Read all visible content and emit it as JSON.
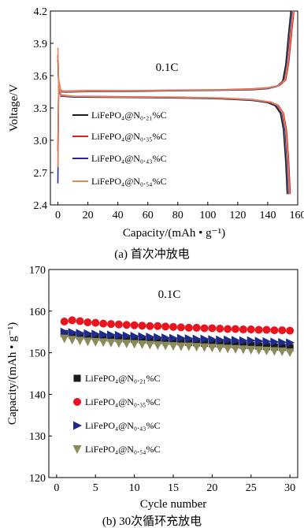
{
  "chart_data": [
    {
      "type": "line",
      "caption": "(a) 首次冲放电",
      "annotation": "0.1C",
      "xlabel": "Capacity/(mAh • g⁻¹)",
      "ylabel": "Voltage/V",
      "xlim": [
        -5,
        160
      ],
      "ylim": [
        2.4,
        4.2
      ],
      "xticks": [
        0,
        20,
        40,
        60,
        80,
        100,
        120,
        140,
        160
      ],
      "yticks": [
        2.4,
        2.7,
        3.0,
        3.3,
        3.6,
        3.9,
        4.2
      ],
      "legend_position": "left",
      "series": [
        {
          "name": "LiFePO₄@N₀.₂₁%C",
          "color": "#1a1a1a",
          "charge": [
            [
              0,
              2.9
            ],
            [
              0.5,
              3.55
            ],
            [
              2,
              3.45
            ],
            [
              5,
              3.448
            ],
            [
              20,
              3.452
            ],
            [
              50,
              3.455
            ],
            [
              80,
              3.46
            ],
            [
              110,
              3.465
            ],
            [
              130,
              3.47
            ],
            [
              140,
              3.48
            ],
            [
              146,
              3.5
            ],
            [
              150,
              3.55
            ],
            [
              152,
              3.7
            ],
            [
              154,
              4.0
            ],
            [
              155.5,
              4.2
            ]
          ],
          "discharge": [
            [
              0,
              3.75
            ],
            [
              0.5,
              3.5
            ],
            [
              2,
              3.41
            ],
            [
              10,
              3.402
            ],
            [
              40,
              3.398
            ],
            [
              80,
              3.393
            ],
            [
              110,
              3.385
            ],
            [
              130,
              3.37
            ],
            [
              140,
              3.35
            ],
            [
              145,
              3.32
            ],
            [
              148.5,
              3.25
            ],
            [
              150.5,
              3.1
            ],
            [
              152,
              2.8
            ],
            [
              153,
              2.5
            ]
          ]
        },
        {
          "name": "LiFePO₄@N₀.₃₅%C",
          "color": "#e02020",
          "charge": [
            [
              0,
              2.9
            ],
            [
              0.5,
              3.56
            ],
            [
              2,
              3.46
            ],
            [
              5,
              3.456
            ],
            [
              20,
              3.46
            ],
            [
              50,
              3.462
            ],
            [
              80,
              3.466
            ],
            [
              110,
              3.47
            ],
            [
              130,
              3.478
            ],
            [
              140,
              3.488
            ],
            [
              148,
              3.51
            ],
            [
              152,
              3.56
            ],
            [
              154,
              3.72
            ],
            [
              156,
              4.0
            ],
            [
              157.5,
              4.2
            ]
          ],
          "discharge": [
            [
              0,
              3.78
            ],
            [
              0.5,
              3.52
            ],
            [
              2,
              3.42
            ],
            [
              10,
              3.41
            ],
            [
              40,
              3.405
            ],
            [
              80,
              3.4
            ],
            [
              110,
              3.392
            ],
            [
              130,
              3.378
            ],
            [
              142,
              3.355
            ],
            [
              147,
              3.325
            ],
            [
              150.5,
              3.25
            ],
            [
              152.5,
              3.1
            ],
            [
              154,
              2.8
            ],
            [
              155,
              2.5
            ]
          ]
        },
        {
          "name": "LiFePO₄@N₀.₄₃%C",
          "color": "#2a2aa0",
          "charge": [
            [
              0,
              2.6
            ],
            [
              0.5,
              3.55
            ],
            [
              2,
              3.45
            ],
            [
              5,
              3.45
            ],
            [
              20,
              3.454
            ],
            [
              50,
              3.457
            ],
            [
              80,
              3.462
            ],
            [
              110,
              3.467
            ],
            [
              130,
              3.473
            ],
            [
              140,
              3.483
            ],
            [
              147,
              3.505
            ],
            [
              151,
              3.555
            ],
            [
              153,
              3.71
            ],
            [
              155,
              4.0
            ],
            [
              156.5,
              4.2
            ]
          ],
          "discharge": [
            [
              0,
              3.8
            ],
            [
              0.5,
              3.5
            ],
            [
              2,
              3.41
            ],
            [
              10,
              3.405
            ],
            [
              40,
              3.4
            ],
            [
              80,
              3.396
            ],
            [
              110,
              3.388
            ],
            [
              130,
              3.374
            ],
            [
              141,
              3.352
            ],
            [
              146,
              3.322
            ],
            [
              149.5,
              3.25
            ],
            [
              151.5,
              3.1
            ],
            [
              153,
              2.8
            ],
            [
              154,
              2.5
            ]
          ]
        },
        {
          "name": "LiFePO₄@N₀.₅₄%C",
          "color": "#e8875a",
          "charge": [
            [
              0,
              2.75
            ],
            [
              0.5,
              3.56
            ],
            [
              2,
              3.455
            ],
            [
              5,
              3.452
            ],
            [
              20,
              3.456
            ],
            [
              50,
              3.46
            ],
            [
              80,
              3.464
            ],
            [
              110,
              3.468
            ],
            [
              130,
              3.475
            ],
            [
              140,
              3.485
            ],
            [
              147,
              3.508
            ],
            [
              151.5,
              3.56
            ],
            [
              153.5,
              3.72
            ],
            [
              155.5,
              4.0
            ],
            [
              157,
              4.2
            ]
          ],
          "discharge": [
            [
              0,
              3.86
            ],
            [
              0.5,
              3.52
            ],
            [
              2,
              3.415
            ],
            [
              10,
              3.408
            ],
            [
              40,
              3.402
            ],
            [
              80,
              3.398
            ],
            [
              110,
              3.39
            ],
            [
              130,
              3.376
            ],
            [
              141.5,
              3.354
            ],
            [
              146.5,
              3.324
            ],
            [
              150,
              3.25
            ],
            [
              152,
              3.1
            ],
            [
              153.5,
              2.8
            ],
            [
              154.5,
              2.5
            ]
          ]
        }
      ]
    },
    {
      "type": "scatter",
      "caption": "(b) 30次循环充放电",
      "annotation": "0.1C",
      "xlabel": "Cycle number",
      "ylabel": "Capacity/(mAh • g⁻¹)",
      "xlim": [
        -1,
        31
      ],
      "ylim": [
        120,
        170
      ],
      "xticks": [
        0,
        5,
        10,
        15,
        20,
        25,
        30
      ],
      "yticks": [
        120,
        130,
        140,
        150,
        160,
        170
      ],
      "legend_position": "left",
      "x": [
        1,
        2,
        3,
        4,
        5,
        6,
        7,
        8,
        9,
        10,
        11,
        12,
        13,
        14,
        15,
        16,
        17,
        18,
        19,
        20,
        21,
        22,
        23,
        24,
        25,
        26,
        27,
        28,
        29,
        30
      ],
      "series": [
        {
          "name": "LiFePO₄@N₀.₂₁%C",
          "color": "#1a1a1a",
          "marker": "square",
          "values": [
            154.6,
            154.3,
            154.1,
            154.0,
            153.8,
            153.6,
            153.5,
            153.4,
            153.3,
            153.2,
            153.1,
            153.0,
            152.9,
            152.8,
            152.7,
            152.6,
            152.5,
            152.4,
            152.3,
            152.2,
            152.1,
            152.0,
            151.9,
            151.8,
            151.7,
            151.6,
            151.5,
            151.4,
            151.3,
            151.2
          ]
        },
        {
          "name": "LiFePO₄@N₀.₃₅%C",
          "color": "#e8141e",
          "marker": "circle",
          "values": [
            157.5,
            157.8,
            157.6,
            157.3,
            157.2,
            157.0,
            156.9,
            156.8,
            156.7,
            156.6,
            156.5,
            156.4,
            156.4,
            156.3,
            156.2,
            156.1,
            156.0,
            156.0,
            155.9,
            155.9,
            155.8,
            155.7,
            155.7,
            155.6,
            155.6,
            155.5,
            155.5,
            155.4,
            155.4,
            155.3
          ]
        },
        {
          "name": "LiFePO₄@N₀.₄₃%C",
          "color": "#1e2a8c",
          "marker": "triangle-right",
          "values": [
            155.0,
            154.9,
            154.7,
            154.6,
            154.5,
            154.4,
            154.3,
            154.2,
            154.1,
            154.0,
            153.9,
            153.8,
            153.7,
            153.6,
            153.5,
            153.5,
            153.4,
            153.3,
            153.3,
            153.2,
            153.1,
            153.1,
            153.0,
            152.9,
            152.9,
            152.8,
            152.7,
            152.6,
            152.5,
            152.4
          ]
        },
        {
          "name": "LiFePO₄@N₀.₅₄%C",
          "color": "#8c8a5a",
          "marker": "triangle-down",
          "values": [
            153.4,
            153.1,
            152.9,
            152.7,
            152.6,
            152.5,
            152.4,
            152.3,
            152.2,
            152.1,
            152.0,
            151.9,
            151.8,
            151.7,
            151.6,
            151.5,
            151.5,
            151.4,
            151.3,
            151.2,
            151.1,
            151.0,
            150.9,
            150.8,
            150.7,
            150.6,
            150.5,
            150.4,
            150.3,
            150.1
          ]
        }
      ]
    }
  ]
}
